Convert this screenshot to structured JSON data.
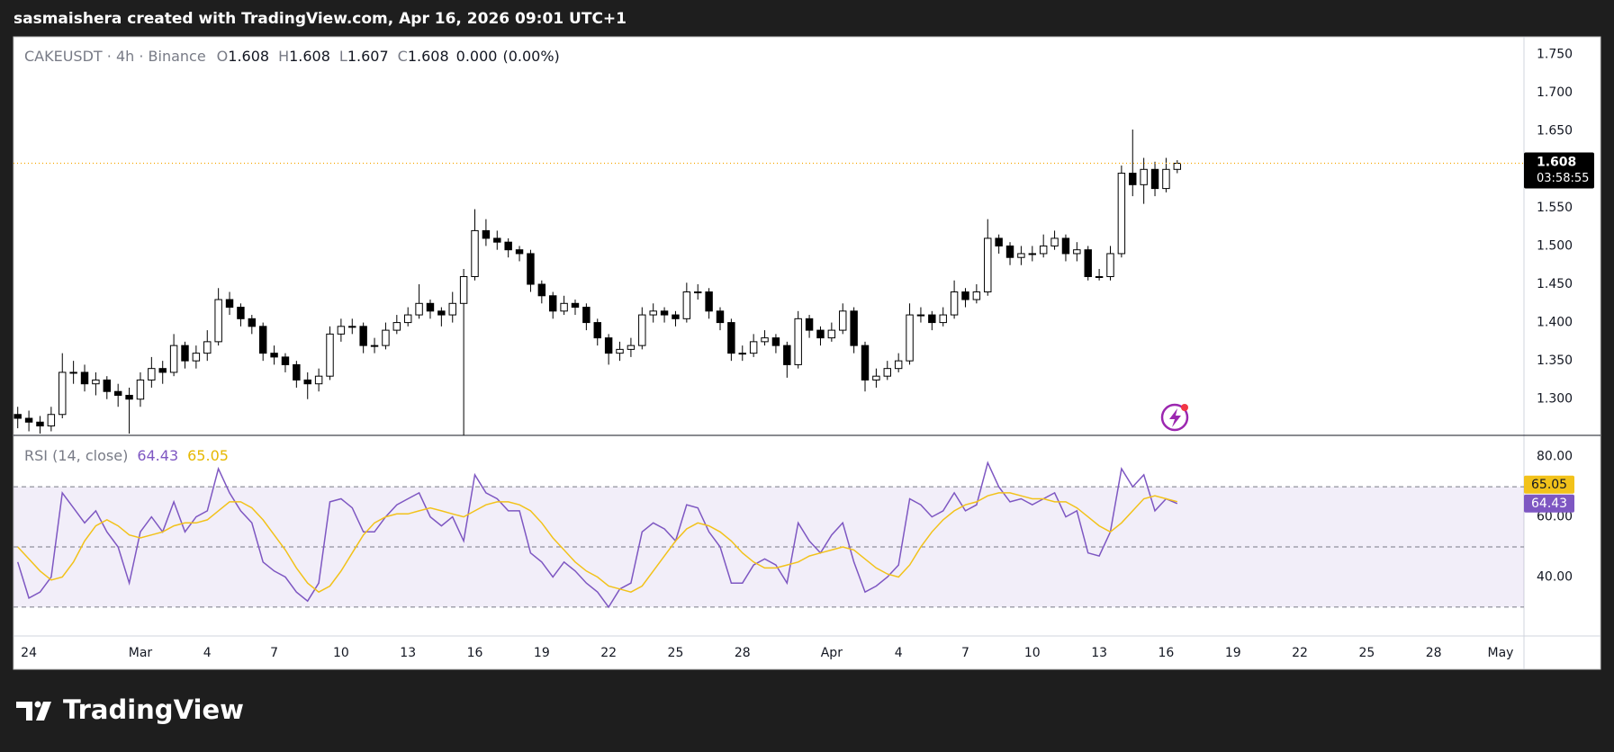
{
  "header": "sasmaishera created with TradingView.com, Apr 16, 2026 09:01 UTC+1",
  "footer": {
    "brand": "TradingView"
  },
  "chart_data": {
    "type": "candlestick",
    "title": "CAKEUSDT · 4h · Binance",
    "legend": {
      "ohlc": [
        {
          "key": "O",
          "value": 1.608
        },
        {
          "key": "H",
          "value": 1.608
        },
        {
          "key": "L",
          "value": 1.607
        },
        {
          "key": "C",
          "value": 1.608
        }
      ],
      "change": {
        "value": 0,
        "label": "0.000"
      },
      "change_percent": {
        "value": 0,
        "label": "(0.00%)"
      }
    },
    "countdown": "03:58:55",
    "up_color": "#ffffff",
    "down_color": "#000000",
    "wick_color": "#000000",
    "last_price_color": "#f7a600",
    "grid": false,
    "x": [
      -0.5,
      0,
      0.5,
      1,
      1.5,
      2,
      2.5,
      3,
      3.5,
      4,
      4.5,
      5,
      5.5,
      6,
      6.5,
      7,
      7.5,
      8,
      8.5,
      9,
      9.5,
      10,
      10.5,
      11,
      11.5,
      12,
      12.5,
      13,
      13.5,
      14,
      14.5,
      15,
      15.5,
      16,
      16.5,
      17,
      17.5,
      18,
      18.5,
      19,
      19.5,
      20,
      20.5,
      21,
      21.5,
      22,
      22.5,
      23,
      23.5,
      24,
      24.5,
      25,
      25.5,
      26,
      26.5,
      27,
      27.5,
      28,
      28.5,
      29,
      29.5,
      30,
      30.5,
      31,
      31.5,
      32,
      32.5,
      33,
      33.5,
      34,
      34.5,
      35,
      35.5,
      36,
      36.5,
      37,
      37.5,
      38,
      38.5,
      39,
      39.5,
      40,
      40.5,
      41,
      41.5,
      42,
      42.5,
      43,
      43.5,
      44,
      44.5,
      45,
      45.5,
      46,
      46.5,
      47,
      47.5,
      48,
      48.5,
      49,
      49.5,
      50,
      50.5,
      51,
      51.5
    ],
    "open": [
      1.28,
      1.275,
      1.27,
      1.265,
      1.28,
      1.335,
      1.335,
      1.32,
      1.325,
      1.31,
      1.305,
      1.3,
      1.325,
      1.34,
      1.335,
      1.37,
      1.35,
      1.36,
      1.375,
      1.43,
      1.42,
      1.405,
      1.395,
      1.36,
      1.355,
      1.345,
      1.325,
      1.32,
      1.33,
      1.385,
      1.395,
      1.395,
      1.37,
      1.37,
      1.39,
      1.4,
      1.41,
      1.425,
      1.415,
      1.41,
      1.425,
      1.46,
      1.52,
      1.51,
      1.505,
      1.495,
      1.49,
      1.45,
      1.435,
      1.415,
      1.425,
      1.42,
      1.4,
      1.38,
      1.36,
      1.365,
      1.37,
      1.41,
      1.415,
      1.41,
      1.405,
      1.44,
      1.44,
      1.415,
      1.4,
      1.36,
      1.36,
      1.375,
      1.38,
      1.37,
      1.345,
      1.405,
      1.39,
      1.38,
      1.39,
      1.415,
      1.37,
      1.325,
      1.33,
      1.34,
      1.35,
      1.41,
      1.41,
      1.4,
      1.41,
      1.44,
      1.43,
      1.44,
      1.51,
      1.5,
      1.485,
      1.49,
      1.49,
      1.5,
      1.51,
      1.49,
      1.495,
      1.46,
      1.46,
      1.49,
      1.595,
      1.58,
      1.6,
      1.575,
      1.6
    ],
    "high": [
      1.29,
      1.285,
      1.278,
      1.29,
      1.36,
      1.35,
      1.345,
      1.335,
      1.33,
      1.32,
      1.315,
      1.335,
      1.355,
      1.35,
      1.385,
      1.375,
      1.37,
      1.39,
      1.445,
      1.44,
      1.425,
      1.41,
      1.4,
      1.37,
      1.36,
      1.35,
      1.335,
      1.34,
      1.395,
      1.405,
      1.405,
      1.4,
      1.38,
      1.4,
      1.41,
      1.42,
      1.45,
      1.43,
      1.42,
      1.44,
      1.47,
      1.548,
      1.535,
      1.52,
      1.51,
      1.5,
      1.495,
      1.455,
      1.44,
      1.435,
      1.43,
      1.425,
      1.405,
      1.385,
      1.375,
      1.38,
      1.42,
      1.425,
      1.42,
      1.415,
      1.452,
      1.45,
      1.445,
      1.42,
      1.405,
      1.37,
      1.385,
      1.39,
      1.385,
      1.375,
      1.415,
      1.41,
      1.395,
      1.4,
      1.425,
      1.42,
      1.375,
      1.34,
      1.35,
      1.36,
      1.425,
      1.42,
      1.415,
      1.42,
      1.455,
      1.445,
      1.45,
      1.535,
      1.515,
      1.505,
      1.5,
      1.5,
      1.515,
      1.52,
      1.515,
      1.505,
      1.5,
      1.47,
      1.5,
      1.605,
      1.652,
      1.615,
      1.61,
      1.615,
      1.612
    ],
    "low": [
      1.262,
      1.258,
      1.255,
      1.258,
      1.275,
      1.32,
      1.31,
      1.305,
      1.3,
      1.29,
      1.255,
      1.29,
      1.315,
      1.32,
      1.33,
      1.34,
      1.34,
      1.35,
      1.37,
      1.41,
      1.395,
      1.385,
      1.35,
      1.345,
      1.335,
      1.315,
      1.3,
      1.31,
      1.325,
      1.375,
      1.385,
      1.36,
      1.36,
      1.365,
      1.385,
      1.395,
      1.405,
      1.405,
      1.395,
      1.4,
      1.253,
      1.455,
      1.5,
      1.495,
      1.485,
      1.48,
      1.44,
      1.425,
      1.405,
      1.41,
      1.41,
      1.39,
      1.37,
      1.345,
      1.35,
      1.355,
      1.365,
      1.4,
      1.4,
      1.395,
      1.4,
      1.43,
      1.405,
      1.39,
      1.35,
      1.35,
      1.355,
      1.37,
      1.36,
      1.328,
      1.34,
      1.38,
      1.37,
      1.375,
      1.385,
      1.36,
      1.31,
      1.315,
      1.325,
      1.335,
      1.345,
      1.4,
      1.39,
      1.395,
      1.405,
      1.42,
      1.425,
      1.435,
      1.49,
      1.475,
      1.475,
      1.48,
      1.485,
      1.495,
      1.48,
      1.48,
      1.455,
      1.455,
      1.455,
      1.485,
      1.565,
      1.555,
      1.565,
      1.57,
      1.595
    ],
    "close": [
      1.275,
      1.27,
      1.265,
      1.28,
      1.335,
      1.335,
      1.32,
      1.325,
      1.31,
      1.305,
      1.3,
      1.325,
      1.34,
      1.335,
      1.37,
      1.35,
      1.36,
      1.375,
      1.43,
      1.42,
      1.405,
      1.395,
      1.36,
      1.355,
      1.345,
      1.325,
      1.32,
      1.33,
      1.385,
      1.395,
      1.395,
      1.37,
      1.37,
      1.39,
      1.4,
      1.41,
      1.425,
      1.415,
      1.41,
      1.425,
      1.46,
      1.52,
      1.51,
      1.505,
      1.495,
      1.49,
      1.45,
      1.435,
      1.415,
      1.425,
      1.42,
      1.4,
      1.38,
      1.36,
      1.365,
      1.37,
      1.41,
      1.415,
      1.41,
      1.405,
      1.44,
      1.44,
      1.415,
      1.4,
      1.36,
      1.36,
      1.375,
      1.38,
      1.37,
      1.345,
      1.405,
      1.39,
      1.38,
      1.39,
      1.415,
      1.37,
      1.325,
      1.33,
      1.34,
      1.35,
      1.41,
      1.41,
      1.4,
      1.41,
      1.44,
      1.43,
      1.44,
      1.51,
      1.5,
      1.485,
      1.49,
      1.49,
      1.5,
      1.51,
      1.49,
      1.495,
      1.46,
      1.46,
      1.49,
      1.595,
      1.58,
      1.6,
      1.575,
      1.6,
      1.608
    ],
    "xlim": [
      -0.69,
      67.05
    ],
    "xticks": [
      {
        "value": 0,
        "label": "24"
      },
      {
        "value": 5,
        "label": "Mar"
      },
      {
        "value": 8,
        "label": "4"
      },
      {
        "value": 11,
        "label": "7"
      },
      {
        "value": 14,
        "label": "10"
      },
      {
        "value": 17,
        "label": "13"
      },
      {
        "value": 20,
        "label": "16"
      },
      {
        "value": 23,
        "label": "19"
      },
      {
        "value": 26,
        "label": "22"
      },
      {
        "value": 29,
        "label": "25"
      },
      {
        "value": 32,
        "label": "28"
      },
      {
        "value": 36,
        "label": "Apr"
      },
      {
        "value": 39,
        "label": "4"
      },
      {
        "value": 42,
        "label": "7"
      },
      {
        "value": 45,
        "label": "10"
      },
      {
        "value": 48,
        "label": "13"
      },
      {
        "value": 51,
        "label": "16"
      },
      {
        "value": 54,
        "label": "19"
      },
      {
        "value": 57,
        "label": "22"
      },
      {
        "value": 60,
        "label": "25"
      },
      {
        "value": 63,
        "label": "28"
      },
      {
        "value": 66,
        "label": "May"
      }
    ],
    "ylim": [
      1.2527,
      1.773
    ],
    "yticks": [
      {
        "value": 1.3,
        "label": "1.300"
      },
      {
        "value": 1.35,
        "label": "1.350"
      },
      {
        "value": 1.4,
        "label": "1.400"
      },
      {
        "value": 1.45,
        "label": "1.450"
      },
      {
        "value": 1.5,
        "label": "1.500"
      },
      {
        "value": 1.55,
        "label": "1.550"
      },
      {
        "value": 1.6,
        "label": "1.600"
      },
      {
        "value": 1.65,
        "label": "1.650"
      },
      {
        "value": 1.7,
        "label": "1.700"
      },
      {
        "value": 1.75,
        "label": "1.750"
      }
    ],
    "rsi": {
      "type": "line",
      "title": "RSI (14, close)",
      "ylim": [
        20.4,
        87.1
      ],
      "yticks": [
        {
          "value": 40,
          "label": "40.00"
        },
        {
          "value": 60,
          "label": "60.00"
        },
        {
          "value": 80,
          "label": "80.00"
        }
      ],
      "levels": [
        70,
        50,
        30
      ],
      "band_color": "#7e57c2",
      "series": [
        {
          "color": "#7e57c2",
          "values": [
            45,
            33,
            35,
            40,
            68,
            63,
            58,
            62,
            55,
            50,
            38,
            55,
            60,
            55,
            65,
            55,
            60,
            62,
            76,
            68,
            62,
            58,
            45,
            42,
            40,
            35,
            32,
            38,
            65,
            66,
            63,
            55,
            55,
            60,
            64,
            66,
            68,
            60,
            57,
            60,
            52,
            74,
            68,
            66,
            62,
            62,
            48,
            45,
            40,
            45,
            42,
            38,
            35,
            30,
            36,
            38,
            55,
            58,
            56,
            52,
            64,
            63,
            55,
            50,
            38,
            38,
            44,
            46,
            44,
            38,
            58,
            52,
            48,
            54,
            58,
            45,
            35,
            37,
            40,
            44,
            66,
            64,
            60,
            62,
            68,
            62,
            64,
            78,
            70,
            65,
            66,
            64,
            66,
            68,
            60,
            62,
            48,
            47,
            55,
            76,
            70,
            74,
            62,
            66,
            64.43
          ]
        },
        {
          "color": "#f2c21a",
          "values": [
            50,
            46,
            42,
            39,
            40,
            45,
            52,
            57,
            59,
            57,
            54,
            53,
            54,
            55,
            57,
            58,
            58,
            59,
            62,
            65,
            65,
            63,
            59,
            54,
            49,
            43,
            38,
            35,
            37,
            42,
            48,
            54,
            58,
            60,
            61,
            61,
            62,
            63,
            62,
            61,
            60,
            62,
            64,
            65,
            65,
            64,
            62,
            58,
            53,
            49,
            45,
            42,
            40,
            37,
            36,
            35,
            37,
            42,
            47,
            52,
            56,
            58,
            57,
            55,
            52,
            48,
            45,
            43,
            43,
            44,
            45,
            47,
            48,
            49,
            50,
            49,
            46,
            43,
            41,
            40,
            44,
            50,
            55,
            59,
            62,
            64,
            65,
            67,
            68,
            68,
            67,
            66,
            66,
            65,
            65,
            63,
            60,
            57,
            55,
            58,
            62,
            66,
            67,
            66,
            65.05
          ]
        }
      ]
    }
  }
}
